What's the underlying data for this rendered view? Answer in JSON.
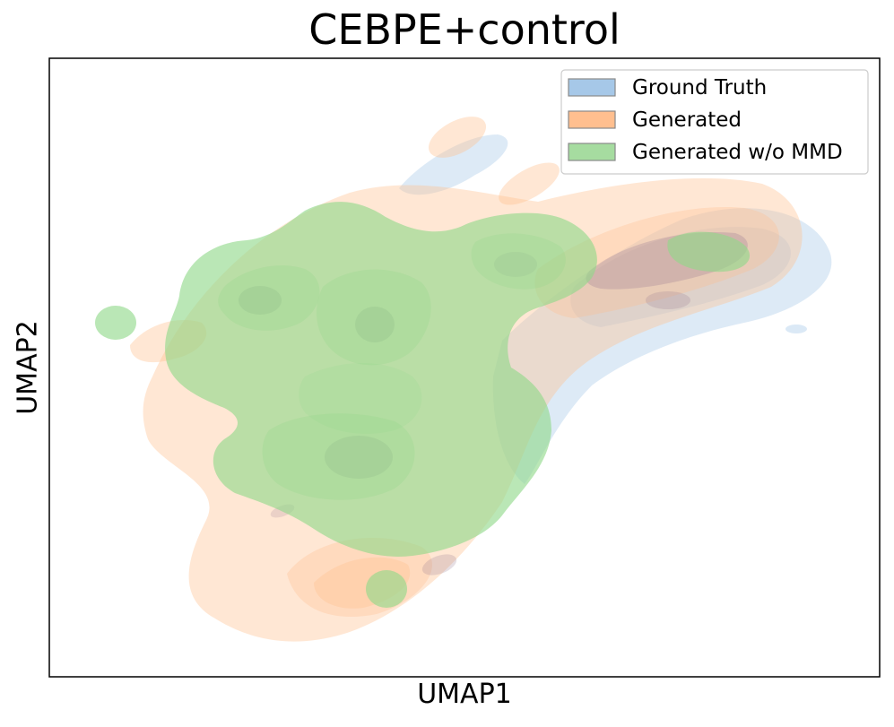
{
  "chart_data": {
    "type": "density_contour",
    "title": "CEBPE+control",
    "xlabel": "UMAP1",
    "ylabel": "UMAP2",
    "ticks": "hidden",
    "legend_position": "top-right",
    "series": [
      {
        "name": "Ground Truth",
        "color": "#a6c8e8"
      },
      {
        "name": "Generated",
        "color": "#ffbf8f"
      },
      {
        "name": "Generated w/o MMD",
        "color": "#a6dca0"
      }
    ]
  }
}
